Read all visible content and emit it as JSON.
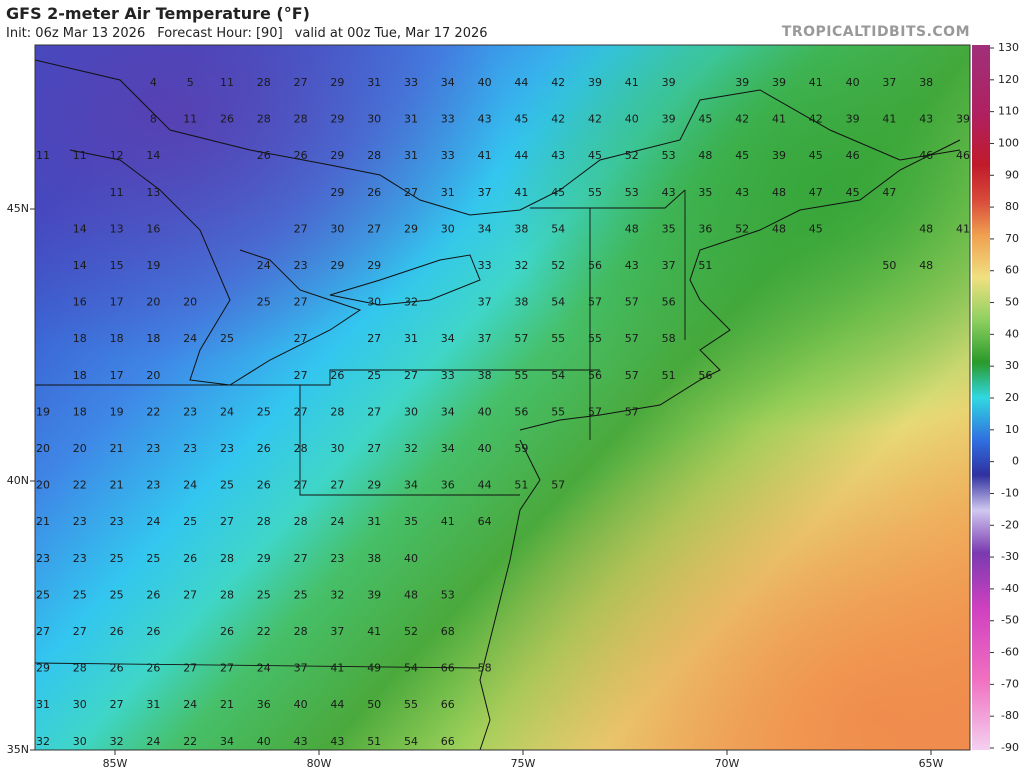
{
  "header": {
    "title": "GFS 2-meter Air Temperature (°F)",
    "init": "Init: 06z Mar 13 2026",
    "forecast_hour": "Forecast Hour: [90]",
    "valid": "valid at 00z Tue, Mar 17 2026",
    "credit": "TROPICALTIDBITS.COM"
  },
  "colorbar": {
    "labels": [
      130,
      120,
      110,
      100,
      90,
      80,
      70,
      60,
      50,
      40,
      30,
      20,
      10,
      0,
      -10,
      -20,
      -30,
      -40,
      -50,
      -60,
      -70,
      -80,
      -90
    ]
  },
  "axes": {
    "lon_labels": [
      "85W",
      "80W",
      "75W",
      "70W",
      "65W"
    ],
    "lat_labels": [
      "45N",
      "40N",
      "35N"
    ]
  },
  "grid": {
    "rows": [
      [
        null,
        null,
        null,
        4,
        5,
        11,
        28,
        27,
        29,
        31,
        33,
        34,
        40,
        44,
        42,
        39,
        41,
        39,
        null,
        39,
        39,
        41,
        40,
        37,
        38,
        null
      ],
      [
        null,
        null,
        null,
        8,
        11,
        26,
        28,
        28,
        29,
        30,
        31,
        33,
        43,
        45,
        42,
        42,
        40,
        39,
        45,
        42,
        41,
        42,
        39,
        41,
        43,
        39
      ],
      [
        11,
        11,
        12,
        14,
        null,
        null,
        26,
        26,
        29,
        28,
        31,
        33,
        41,
        44,
        43,
        45,
        52,
        53,
        48,
        45,
        39,
        45,
        46,
        null,
        46,
        46
      ],
      [
        null,
        null,
        11,
        13,
        null,
        null,
        null,
        null,
        29,
        26,
        27,
        31,
        37,
        41,
        45,
        55,
        53,
        43,
        35,
        43,
        48,
        47,
        45,
        47,
        null,
        null
      ],
      [
        null,
        14,
        13,
        16,
        null,
        null,
        null,
        27,
        30,
        27,
        29,
        30,
        34,
        38,
        54,
        null,
        48,
        35,
        36,
        52,
        48,
        45,
        null,
        null,
        48,
        41
      ],
      [
        null,
        14,
        15,
        19,
        null,
        null,
        24,
        23,
        29,
        29,
        null,
        null,
        33,
        32,
        52,
        56,
        43,
        37,
        51,
        null,
        null,
        null,
        null,
        50,
        48,
        null
      ],
      [
        null,
        16,
        17,
        20,
        20,
        null,
        25,
        27,
        null,
        30,
        32,
        null,
        37,
        38,
        54,
        57,
        57,
        56
      ],
      [
        null,
        18,
        18,
        18,
        24,
        25,
        null,
        27,
        null,
        27,
        31,
        34,
        37,
        57,
        55,
        55,
        57,
        58
      ],
      [
        null,
        18,
        17,
        20,
        null,
        null,
        null,
        27,
        26,
        25,
        27,
        33,
        38,
        55,
        54,
        56,
        57,
        51,
        56
      ],
      [
        19,
        18,
        19,
        22,
        23,
        24,
        25,
        27,
        28,
        27,
        30,
        34,
        40,
        56,
        55,
        57,
        57
      ],
      [
        20,
        20,
        21,
        23,
        23,
        23,
        26,
        28,
        30,
        27,
        32,
        34,
        40,
        59
      ],
      [
        20,
        22,
        21,
        23,
        24,
        25,
        26,
        27,
        27,
        29,
        34,
        36,
        44,
        51,
        57
      ],
      [
        21,
        23,
        23,
        24,
        25,
        27,
        28,
        28,
        24,
        31,
        35,
        41,
        64
      ],
      [
        23,
        23,
        25,
        25,
        26,
        28,
        29,
        27,
        23,
        38,
        40
      ],
      [
        25,
        25,
        25,
        26,
        27,
        28,
        25,
        25,
        32,
        39,
        48,
        53
      ],
      [
        27,
        27,
        26,
        26,
        null,
        26,
        22,
        28,
        37,
        41,
        52,
        68
      ],
      [
        29,
        28,
        26,
        26,
        27,
        27,
        24,
        37,
        41,
        49,
        54,
        66,
        58
      ],
      [
        31,
        30,
        27,
        31,
        24,
        21,
        36,
        40,
        44,
        50,
        55,
        66
      ],
      [
        32,
        30,
        32,
        24,
        22,
        34,
        40,
        43,
        43,
        51,
        54,
        66
      ]
    ]
  }
}
